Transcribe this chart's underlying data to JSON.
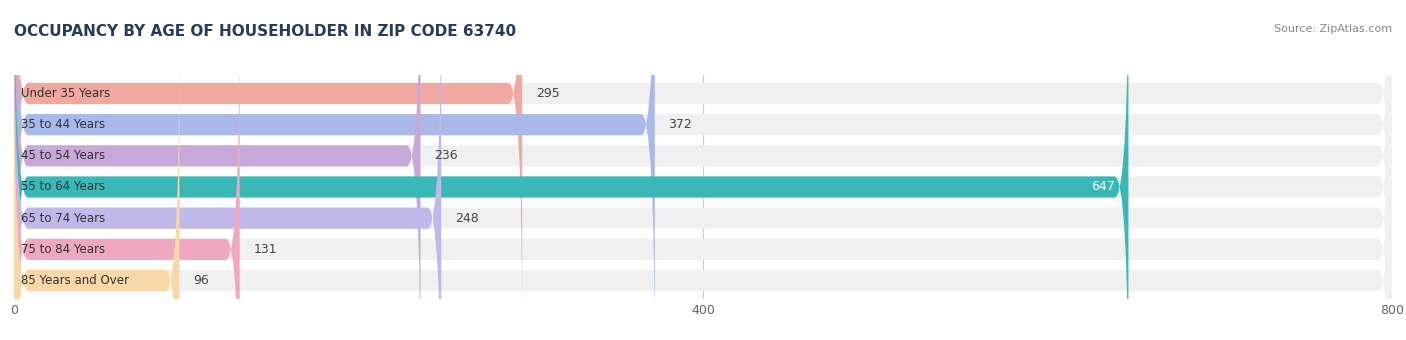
{
  "title": "OCCUPANCY BY AGE OF HOUSEHOLDER IN ZIP CODE 63740",
  "source": "Source: ZipAtlas.com",
  "categories": [
    "Under 35 Years",
    "35 to 44 Years",
    "45 to 54 Years",
    "55 to 64 Years",
    "65 to 74 Years",
    "75 to 84 Years",
    "85 Years and Over"
  ],
  "values": [
    295,
    372,
    236,
    647,
    248,
    131,
    96
  ],
  "bar_colors": [
    "#f0a8a0",
    "#a8b8e8",
    "#c8a8d8",
    "#3ab8b8",
    "#c0b8e8",
    "#f0a8c0",
    "#f8d8a8"
  ],
  "bar_bg_color": "#f0f0f0",
  "xlim": [
    0,
    800
  ],
  "xticks": [
    0,
    400,
    800
  ],
  "title_color": "#2a3a5a",
  "source_color": "#888888",
  "label_color_dark": "#ffffff",
  "label_color_light": "#444444",
  "background_color": "#ffffff",
  "title_fontsize": 11,
  "bar_label_fontsize": 9,
  "tick_fontsize": 9,
  "category_fontsize": 8.5
}
